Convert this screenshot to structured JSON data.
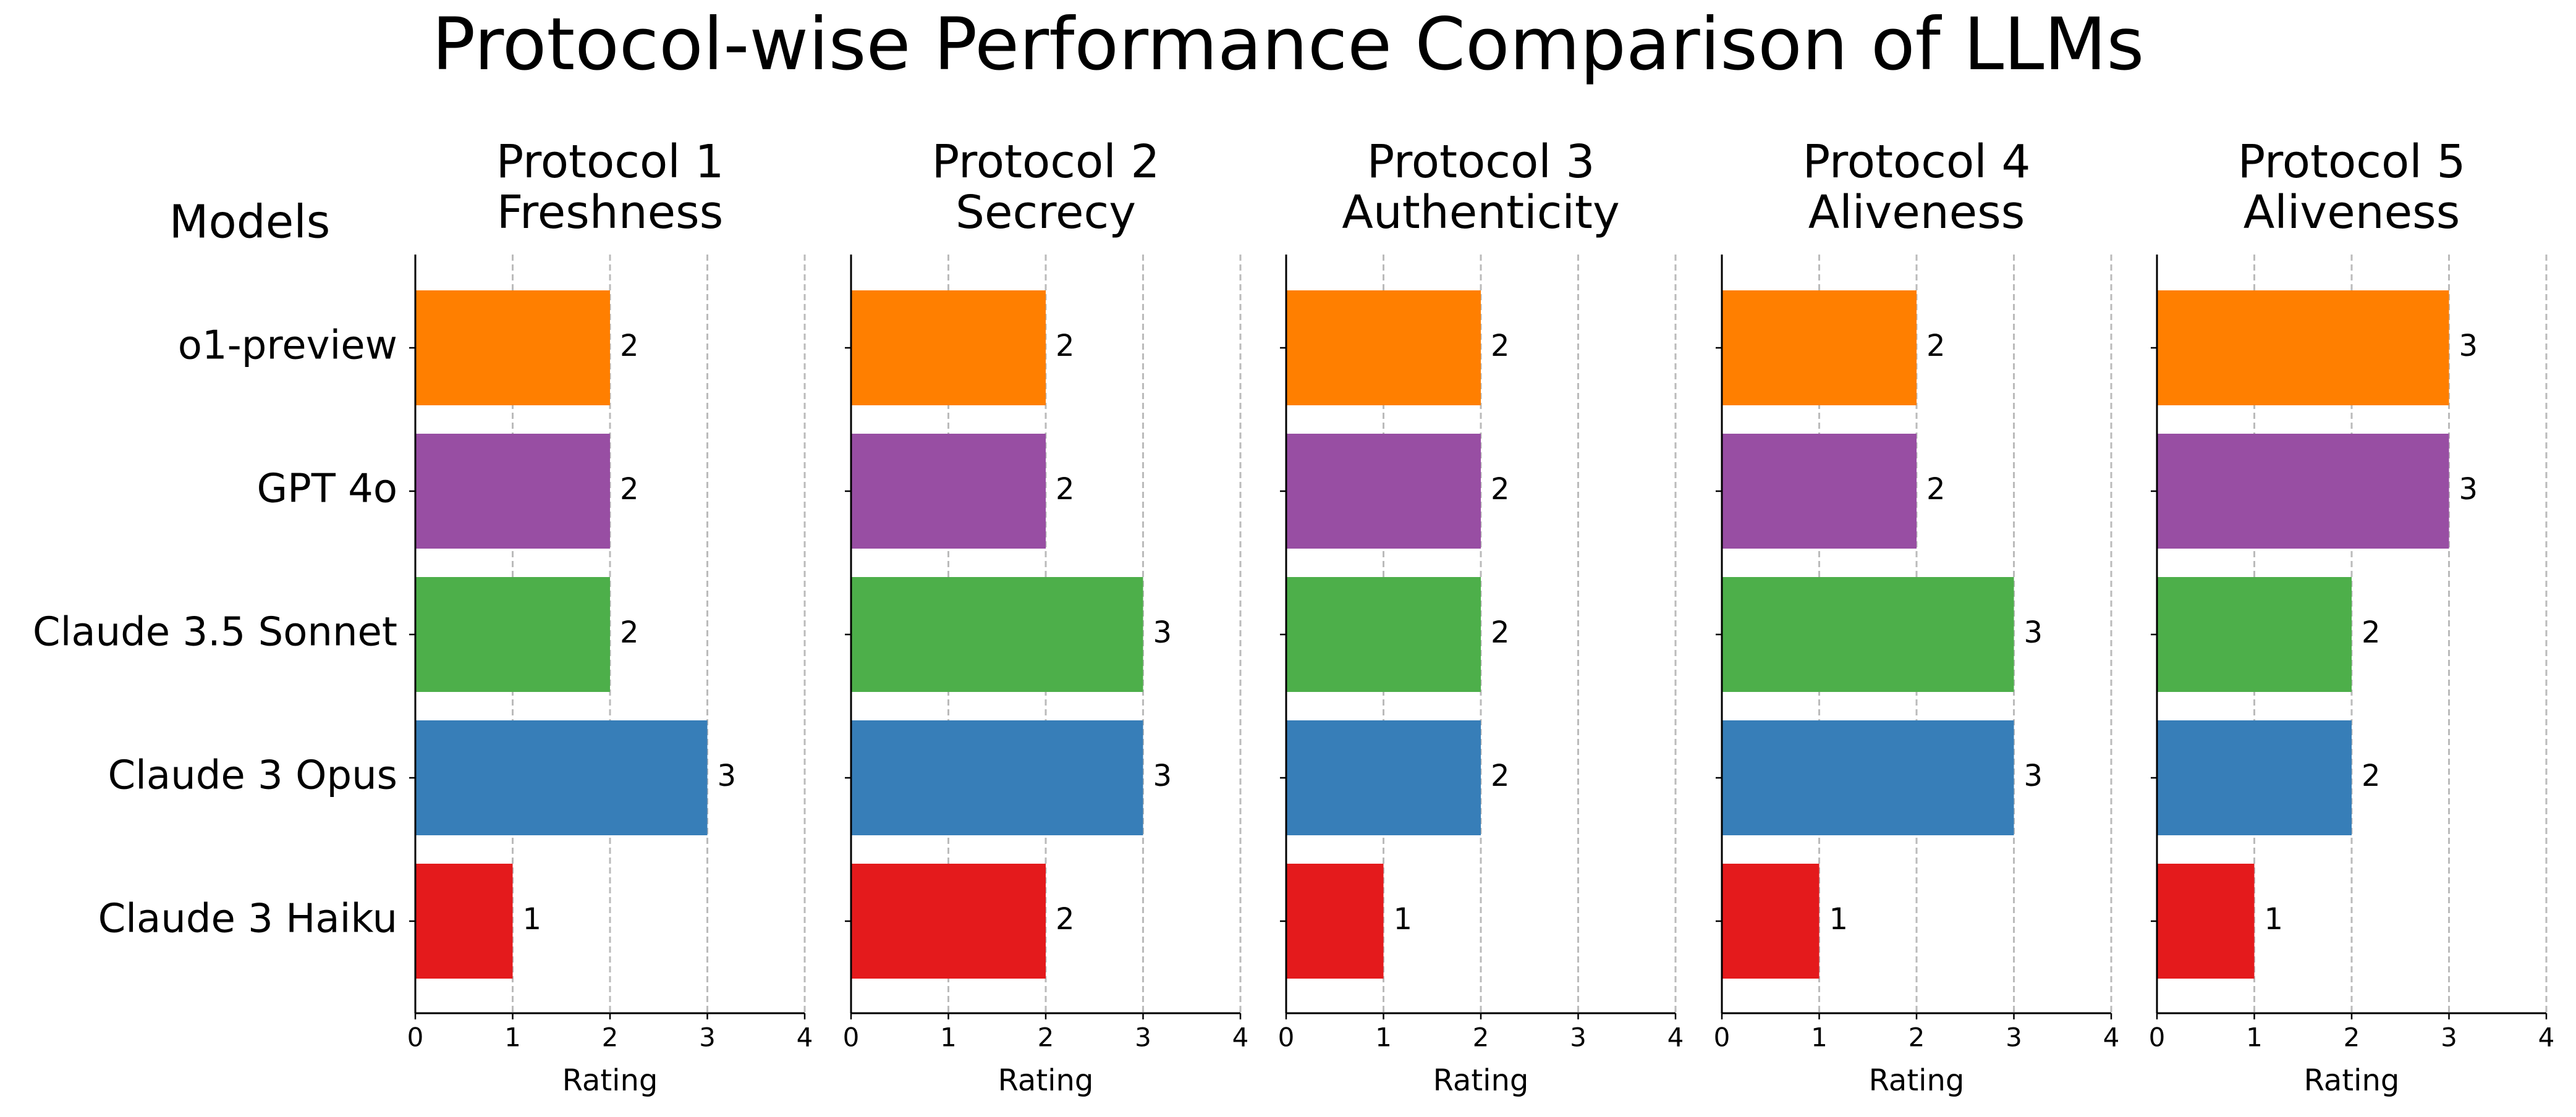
{
  "title": "Protocol-wise Performance Comparison of LLMs",
  "ylabel": "Models",
  "categories": [
    "o1-preview",
    "GPT 4o",
    "Claude 3.5 Sonnet",
    "Claude 3 Opus",
    "Claude 3 Haiku"
  ],
  "chart_data": [
    {
      "type": "barh",
      "title": "Protocol 1\nFreshness",
      "xlabel": "Rating",
      "values": [
        2,
        2,
        2,
        3,
        1
      ],
      "colors": [
        "#ff7f00",
        "#984ea3",
        "#4daf4a",
        "#377eb8",
        "#e41a1c"
      ],
      "xlim": [
        0,
        4
      ],
      "xticks": [
        0,
        1,
        2,
        3,
        4
      ],
      "grid": true
    },
    {
      "type": "barh",
      "title": "Protocol 2\nSecrecy",
      "xlabel": "Rating",
      "values": [
        2,
        2,
        3,
        3,
        2
      ],
      "colors": [
        "#ff7f00",
        "#984ea3",
        "#4daf4a",
        "#377eb8",
        "#e41a1c"
      ],
      "xlim": [
        0,
        4
      ],
      "xticks": [
        0,
        1,
        2,
        3,
        4
      ],
      "grid": true
    },
    {
      "type": "barh",
      "title": "Protocol 3\nAuthenticity",
      "xlabel": "Rating",
      "values": [
        2,
        2,
        2,
        2,
        1
      ],
      "colors": [
        "#ff7f00",
        "#984ea3",
        "#4daf4a",
        "#377eb8",
        "#e41a1c"
      ],
      "xlim": [
        0,
        4
      ],
      "xticks": [
        0,
        1,
        2,
        3,
        4
      ],
      "grid": true
    },
    {
      "type": "barh",
      "title": "Protocol 4\nAliveness",
      "xlabel": "Rating",
      "values": [
        2,
        2,
        3,
        3,
        1
      ],
      "colors": [
        "#ff7f00",
        "#984ea3",
        "#4daf4a",
        "#377eb8",
        "#e41a1c"
      ],
      "xlim": [
        0,
        4
      ],
      "xticks": [
        0,
        1,
        2,
        3,
        4
      ],
      "grid": true
    },
    {
      "type": "barh",
      "title": "Protocol 5\nAliveness",
      "xlabel": "Rating",
      "values": [
        3,
        3,
        2,
        2,
        1
      ],
      "colors": [
        "#ff7f00",
        "#984ea3",
        "#4daf4a",
        "#377eb8",
        "#e41a1c"
      ],
      "xlim": [
        0,
        4
      ],
      "xticks": [
        0,
        1,
        2,
        3,
        4
      ],
      "grid": true
    }
  ]
}
